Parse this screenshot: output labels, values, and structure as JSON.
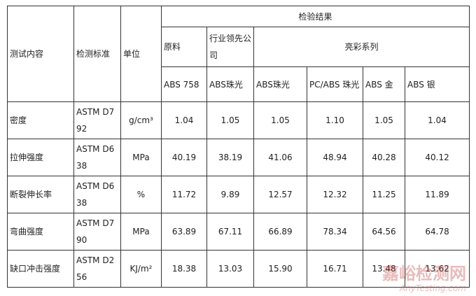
{
  "table": {
    "header": {
      "group": "检验结果",
      "subgroups": [
        "原料",
        "行业领先公司",
        "亮彩系列"
      ],
      "columns": [
        "测试内容",
        "检测标准",
        "单位"
      ],
      "materials": [
        "ABS 758",
        "ABS珠光",
        "ABS珠光",
        "PC/ABS 珠光",
        "ABS 金",
        "ABS 银"
      ]
    },
    "rows": [
      [
        "密度",
        "ASTM D792",
        "g/cm³",
        "1.04",
        "1.05",
        "1.05",
        "1.10",
        "1.05",
        "1.04"
      ],
      [
        "拉伸强度",
        "ASTM D638",
        "MPa",
        "40.19",
        "38.19",
        "41.06",
        "48.94",
        "40.28",
        "40.12"
      ],
      [
        "断裂伸长率",
        "ASTM D638",
        "%",
        "11.72",
        "9.89",
        "12.57",
        "12.32",
        "11.25",
        "11.89"
      ],
      [
        "弯曲强度",
        "ASTM D790",
        "MPa",
        "63.89",
        "67.11",
        "66.89",
        "78.34",
        "64.56",
        "64.78"
      ],
      [
        "缺口冲击强度",
        "ASTM D256",
        "KJ/m²",
        "18.38",
        "13.03",
        "15.90",
        "16.71",
        "13.48",
        "13.62"
      ]
    ]
  },
  "watermark": {
    "title": "嘉峪检测网",
    "url": "AnyTesting.com"
  }
}
